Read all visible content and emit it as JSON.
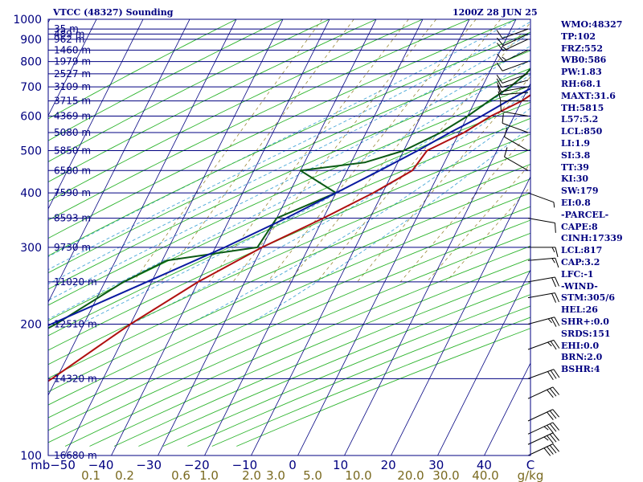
{
  "header": {
    "station": "VTCC (48327) Sounding",
    "time": "1200Z 28 JUN 25"
  },
  "indices": [
    "WMO:48327",
    "TP:102",
    "FRZ:552",
    "WB0:586",
    "PW:1.83",
    "RH:68.1",
    "MAXT:31.6",
    "TH:5815",
    "L57:5.2",
    "LCL:850",
    "LI:1.9",
    "SI:3.8",
    "TT:39",
    "KI:30",
    "SW:179",
    "EI:0.8",
    "-PARCEL-",
    "CAPE:8",
    "CINH:17339",
    "LCL:817",
    "CAP:3.2",
    "LFC:-1",
    "-WIND-",
    "STM:305/6",
    "HEL:26",
    "SHR+:0.0",
    "SRDS:151",
    "EHI:0.0",
    "BRN:2.0",
    "BSHR:4"
  ],
  "colors": {
    "frame": "#000080",
    "isobar": "#000080",
    "isotherm": "#000080",
    "dry_adiabat": "#2db42d",
    "moist_adiabat": "#4aa8d8",
    "mixing_ratio": "#9a8a3a",
    "temperature": "#b01010",
    "dewpoint": "#0a5a14",
    "parcel": "#0a1aa0",
    "wind": "#000000"
  },
  "chart_data": {
    "type": "skew-t",
    "pressure_axis": {
      "unit": "mb",
      "scale": "log",
      "range": [
        1000,
        100
      ],
      "labels": [
        100,
        200,
        300,
        400,
        500,
        600,
        700,
        800,
        900,
        1000
      ]
    },
    "isobar_levels": [
      100,
      150,
      200,
      250,
      300,
      350,
      400,
      450,
      500,
      550,
      600,
      650,
      700,
      750,
      800,
      850,
      900,
      925,
      950,
      1000
    ],
    "height_labels": [
      {
        "p": 100,
        "text": "16680 m"
      },
      {
        "p": 150,
        "text": "14320 m"
      },
      {
        "p": 200,
        "text": "12510 m"
      },
      {
        "p": 250,
        "text": "11020 m"
      },
      {
        "p": 300,
        "text": "9730 m"
      },
      {
        "p": 350,
        "text": "8593 m"
      },
      {
        "p": 400,
        "text": "7590 m"
      },
      {
        "p": 450,
        "text": "6580 m"
      },
      {
        "p": 500,
        "text": "5850 m"
      },
      {
        "p": 550,
        "text": "5080 m"
      },
      {
        "p": 600,
        "text": "4369 m"
      },
      {
        "p": 650,
        "text": "3715 m"
      },
      {
        "p": 700,
        "text": "3109 m"
      },
      {
        "p": 750,
        "text": "2527 m"
      },
      {
        "p": 800,
        "text": "1979 m"
      },
      {
        "p": 850,
        "text": "1460 m"
      },
      {
        "p": 900,
        "text": "962 m"
      },
      {
        "p": 925,
        "text": "489 m"
      },
      {
        "p": 950,
        "text": "35 m"
      }
    ],
    "temperature_axis": {
      "unit": "C",
      "labels": [
        {
          "v": -50,
          "text": "mb−50"
        },
        {
          "v": -40,
          "text": "−40"
        },
        {
          "v": -30,
          "text": "−30"
        },
        {
          "v": -20,
          "text": "−20"
        },
        {
          "v": -10,
          "text": "−10"
        },
        {
          "v": 0,
          "text": "0"
        },
        {
          "v": 10,
          "text": "10"
        },
        {
          "v": 20,
          "text": "20"
        },
        {
          "v": 30,
          "text": "30"
        },
        {
          "v": 40,
          "text": "40"
        },
        {
          "v": 50,
          "text": "C"
        }
      ]
    },
    "mixing_ratio_axis": {
      "unit": "g/kg",
      "labels": [
        {
          "x": 0.1,
          "text": "0.1"
        },
        {
          "x": 0.2,
          "text": "0.2"
        },
        {
          "x": 0.6,
          "text": "0.6"
        },
        {
          "x": 1.0,
          "text": "1.0"
        },
        {
          "x": 2.0,
          "text": "2.0"
        },
        {
          "x": 3.0,
          "text": "3.0"
        },
        {
          "x": 5.0,
          "text": "5.0"
        },
        {
          "x": 10.0,
          "text": "10.0"
        },
        {
          "x": 20.0,
          "text": "20.0"
        },
        {
          "x": 30.0,
          "text": "30.0"
        },
        {
          "x": 40.0,
          "text": "40.0"
        },
        {
          "x": 50,
          "text": "g/kg"
        }
      ]
    },
    "series": [
      {
        "name": "temperature",
        "points": [
          [
            100,
            -76
          ],
          [
            115,
            -72
          ],
          [
            150,
            -61
          ],
          [
            200,
            -50
          ],
          [
            250,
            -40
          ],
          [
            300,
            -30
          ],
          [
            350,
            -20
          ],
          [
            400,
            -12
          ],
          [
            450,
            -6
          ],
          [
            500,
            -5
          ],
          [
            550,
            1
          ],
          [
            600,
            5
          ],
          [
            650,
            10
          ],
          [
            700,
            13
          ],
          [
            750,
            17
          ],
          [
            800,
            17
          ],
          [
            850,
            21
          ],
          [
            900,
            25
          ],
          [
            955,
            30
          ]
        ]
      },
      {
        "name": "dewpoint",
        "points": [
          [
            100,
            -87
          ],
          [
            115,
            -87
          ],
          [
            150,
            -82
          ],
          [
            200,
            -66
          ],
          [
            250,
            -56
          ],
          [
            280,
            -49
          ],
          [
            300,
            -31
          ],
          [
            350,
            -30
          ],
          [
            400,
            -20
          ],
          [
            450,
            -30
          ],
          [
            470,
            -17
          ],
          [
            500,
            -10
          ],
          [
            550,
            -4
          ],
          [
            600,
            0
          ],
          [
            650,
            3
          ],
          [
            700,
            6
          ],
          [
            750,
            8
          ],
          [
            800,
            9
          ],
          [
            850,
            12
          ],
          [
            900,
            15
          ],
          [
            955,
            18
          ]
        ]
      },
      {
        "name": "parcel",
        "points": [
          [
            120,
            -98
          ],
          [
            150,
            -88
          ],
          [
            200,
            -67
          ],
          [
            250,
            -51
          ],
          [
            300,
            -38
          ],
          [
            350,
            -28
          ],
          [
            400,
            -20
          ],
          [
            450,
            -13
          ],
          [
            500,
            -7
          ],
          [
            550,
            -2
          ],
          [
            600,
            3
          ],
          [
            650,
            7
          ],
          [
            700,
            11
          ],
          [
            750,
            14
          ],
          [
            800,
            17
          ],
          [
            817,
            18
          ],
          [
            850,
            22
          ],
          [
            900,
            26
          ],
          [
            955,
            31
          ]
        ]
      }
    ],
    "wind_barbs": [
      {
        "p": 100,
        "dir": 65,
        "spd": 40
      },
      {
        "p": 106,
        "dir": 65,
        "spd": 35
      },
      {
        "p": 112,
        "dir": 65,
        "spd": 35
      },
      {
        "p": 120,
        "dir": 65,
        "spd": 30
      },
      {
        "p": 135,
        "dir": 65,
        "spd": 30
      },
      {
        "p": 150,
        "dir": 70,
        "spd": 30
      },
      {
        "p": 175,
        "dir": 70,
        "spd": 25
      },
      {
        "p": 200,
        "dir": 75,
        "spd": 25
      },
      {
        "p": 230,
        "dir": 80,
        "spd": 20
      },
      {
        "p": 250,
        "dir": 80,
        "spd": 20
      },
      {
        "p": 280,
        "dir": 85,
        "spd": 15
      },
      {
        "p": 300,
        "dir": 90,
        "spd": 15
      },
      {
        "p": 350,
        "dir": 100,
        "spd": 10
      },
      {
        "p": 400,
        "dir": 110,
        "spd": 5
      },
      {
        "p": 450,
        "dir": 300,
        "spd": 10
      },
      {
        "p": 500,
        "dir": 300,
        "spd": 10
      },
      {
        "p": 550,
        "dir": 290,
        "spd": 10
      },
      {
        "p": 600,
        "dir": 280,
        "spd": 10
      },
      {
        "p": 650,
        "dir": 270,
        "spd": 10
      },
      {
        "p": 680,
        "dir": 265,
        "spd": 10
      },
      {
        "p": 700,
        "dir": 260,
        "spd": 10
      },
      {
        "p": 725,
        "dir": 255,
        "spd": 10
      },
      {
        "p": 750,
        "dir": 250,
        "spd": 10
      },
      {
        "p": 800,
        "dir": 250,
        "spd": 10
      },
      {
        "p": 850,
        "dir": 245,
        "spd": 15
      },
      {
        "p": 900,
        "dir": 245,
        "spd": 15
      },
      {
        "p": 925,
        "dir": 245,
        "spd": 10
      },
      {
        "p": 950,
        "dir": 250,
        "spd": 10
      }
    ],
    "grid": true
  }
}
